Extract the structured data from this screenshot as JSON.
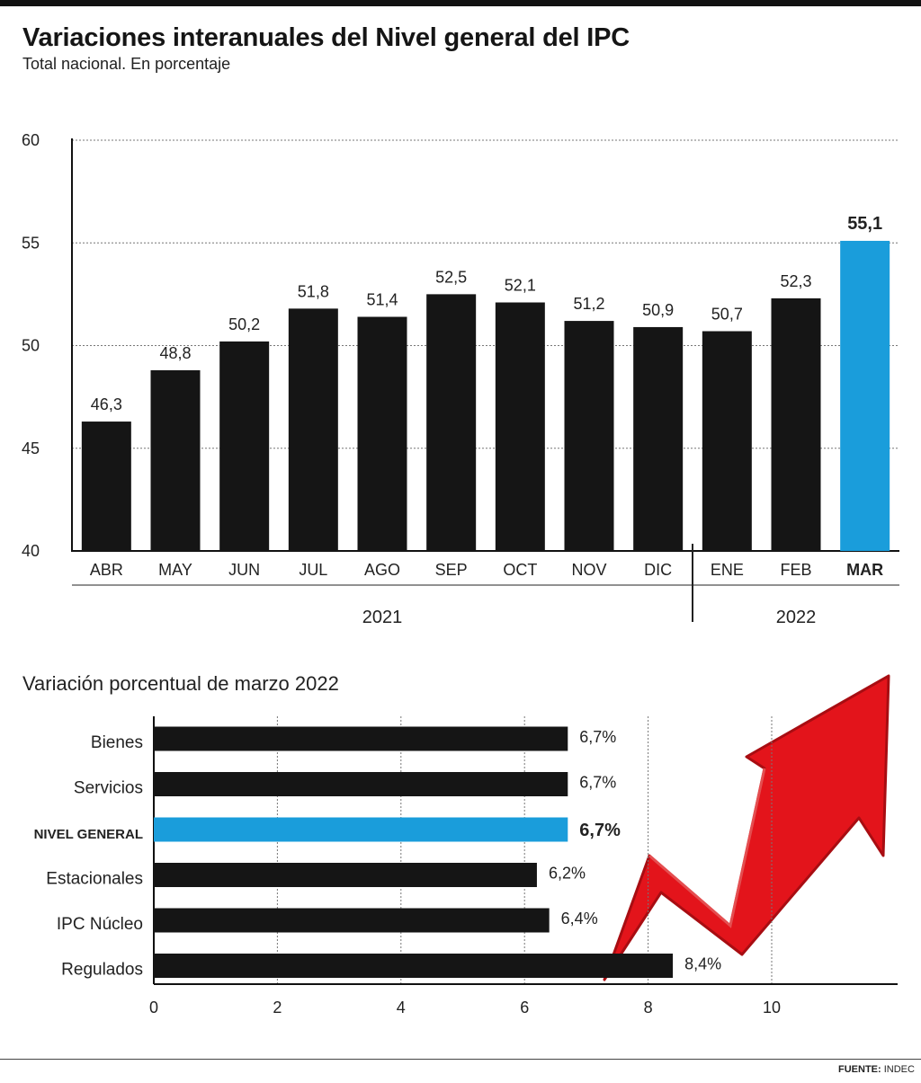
{
  "title": "Variaciones interanuales del Nivel general del IPC",
  "subtitle": "Total nacional. En porcentaje",
  "source_label": "FUENTE:",
  "source_value": "INDEC",
  "colors": {
    "bar": "#151515",
    "highlight": "#1a9ddb",
    "arrow": "#e3141b",
    "arrow_dark": "#a80d12"
  },
  "chart_data": [
    {
      "type": "bar",
      "title": "Variaciones interanuales del Nivel general del IPC",
      "subtitle": "Total nacional. En porcentaje",
      "categories": [
        "ABR",
        "MAY",
        "JUN",
        "JUL",
        "AGO",
        "SEP",
        "OCT",
        "NOV",
        "DIC",
        "ENE",
        "FEB",
        "MAR"
      ],
      "values": [
        46.3,
        48.8,
        50.2,
        51.8,
        51.4,
        52.5,
        52.1,
        51.2,
        50.9,
        50.7,
        52.3,
        55.1
      ],
      "value_labels": [
        "46,3",
        "48,8",
        "50,2",
        "51,8",
        "51,4",
        "52,5",
        "52,1",
        "51,2",
        "50,9",
        "50,7",
        "52,3",
        "55,1"
      ],
      "highlight_index": 11,
      "ylim": [
        40,
        60
      ],
      "yticks": [
        "40",
        "45",
        "50",
        "55",
        "60"
      ],
      "year_groups": [
        {
          "label": "2021",
          "from": 0,
          "to": 8
        },
        {
          "label": "2022",
          "from": 9,
          "to": 11
        }
      ],
      "grid": true
    },
    {
      "type": "bar",
      "orientation": "horizontal",
      "title": "Variación porcentual de marzo 2022",
      "categories": [
        "Bienes",
        "Servicios",
        "NIVEL GENERAL",
        "Estacionales",
        "IPC Núcleo",
        "Regulados"
      ],
      "values": [
        6.7,
        6.7,
        6.7,
        6.2,
        6.4,
        8.4
      ],
      "value_labels": [
        "6,7%",
        "6,7%",
        "6,7%",
        "6,2%",
        "6,4%",
        "8,4%"
      ],
      "highlight_index": 2,
      "xlim": [
        0,
        12
      ],
      "xticks": [
        "0",
        "2",
        "4",
        "6",
        "8",
        "10"
      ],
      "grid": true
    }
  ]
}
